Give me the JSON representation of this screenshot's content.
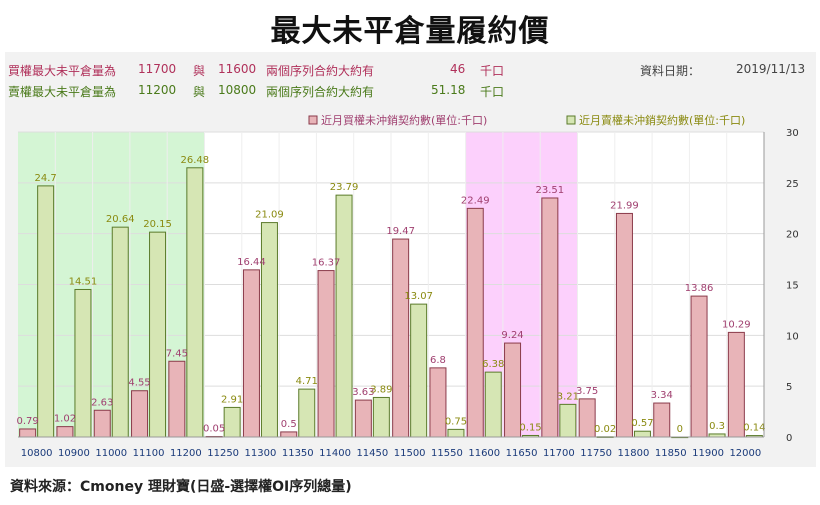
{
  "title": "最大未平倉量履約價",
  "info": {
    "call_row": {
      "label": "買權最大未平倉量為",
      "v1": "11700",
      "mid": "與",
      "v2": "11600",
      "tail": "兩個序列合約大約有",
      "num": "46",
      "unit": "千口"
    },
    "put_row": {
      "label": "賣權最大未平倉量為",
      "v1": "11200",
      "mid": "與",
      "v2": "10800",
      "tail": "兩個序列合約大約有",
      "num": "51.18",
      "unit": "千口"
    },
    "date_label": "資料日期：",
    "date": "2019/11/13"
  },
  "colors": {
    "call_text": "#b0305a",
    "put_text": "#4a7a1a",
    "call_fill": "#e8b4b8",
    "call_stroke": "#8a3a4a",
    "put_fill": "#d6e6b4",
    "put_stroke": "#5a7a2a",
    "call_label": "#a04070",
    "put_label": "#8a8a10",
    "green_band": "#d4f5d4",
    "pink_band": "#fcd0fc"
  },
  "chart_data": {
    "type": "bar",
    "categories": [
      "10800",
      "10900",
      "11000",
      "11100",
      "11200",
      "11250",
      "11300",
      "11350",
      "11400",
      "11450",
      "11500",
      "11550",
      "11600",
      "11650",
      "11700",
      "11750",
      "11800",
      "11850",
      "11900",
      "12000"
    ],
    "series": [
      {
        "name": "近月買權未沖銷契約數(單位:千口)",
        "values": [
          0.79,
          1.02,
          2.63,
          4.55,
          7.45,
          0.05,
          16.44,
          0.5,
          16.37,
          3.63,
          19.47,
          6.8,
          22.49,
          9.24,
          23.51,
          3.75,
          21.99,
          3.34,
          13.86,
          10.29
        ]
      },
      {
        "name": "近月賣權未沖銷契約數(單位:千口)",
        "values": [
          24.7,
          14.51,
          20.64,
          20.15,
          26.48,
          2.91,
          21.09,
          4.71,
          23.79,
          3.89,
          13.07,
          0.75,
          6.38,
          0.15,
          3.21,
          0.02,
          0.57,
          0,
          0.3,
          0.14
        ]
      }
    ],
    "ylim": [
      0,
      30
    ],
    "yticks": [
      0,
      5,
      10,
      15,
      20,
      25,
      30
    ],
    "grid": true,
    "legend_position": "top-right",
    "highlight_bands": [
      {
        "from": "10800",
        "to": "11200",
        "color": "green"
      },
      {
        "from": "11600",
        "to": "11700",
        "color": "pink"
      }
    ]
  },
  "source": "資料來源：Cmoney 理財寶(日盛-選擇權OI序列總量)"
}
